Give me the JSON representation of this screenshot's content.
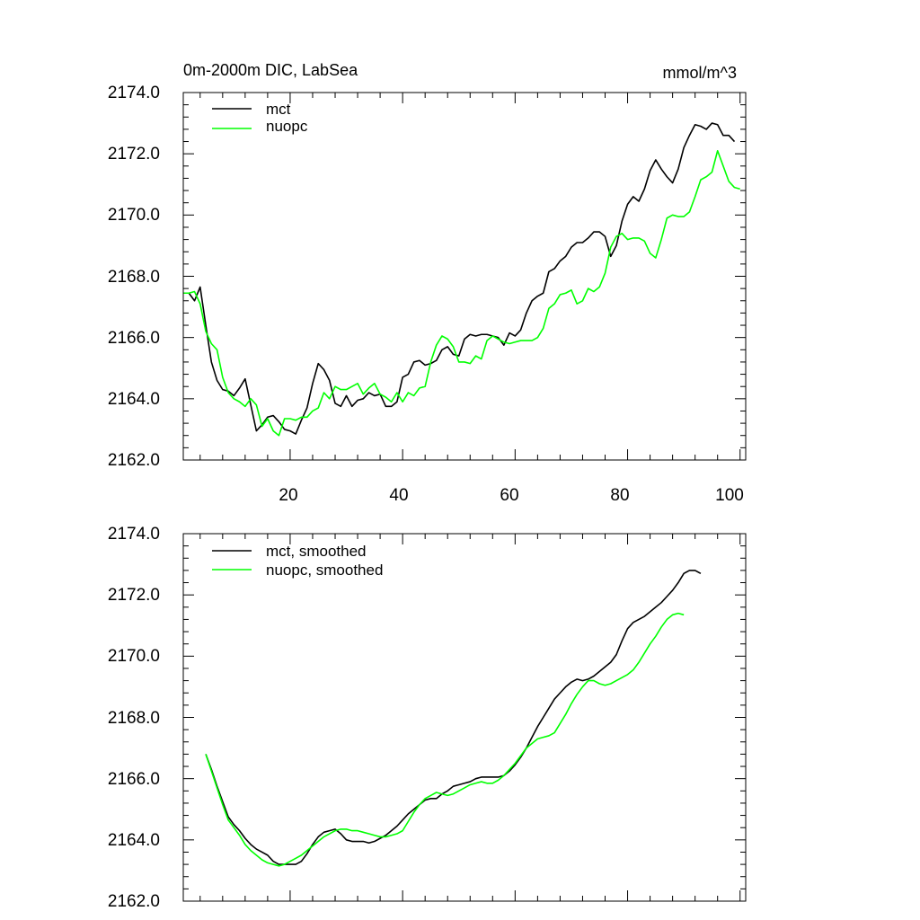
{
  "chart_data": [
    {
      "type": "line",
      "title": "0m-2000m DIC, LabSea",
      "units": "mmol/m^3",
      "xlabel": "",
      "ylabel": "",
      "xlim": [
        1,
        101
      ],
      "ylim": [
        2162.0,
        2174.0
      ],
      "x_ticks": [
        20,
        40,
        60,
        80,
        100
      ],
      "x_tick_labels": [
        "20",
        "40",
        "60",
        "80",
        "100"
      ],
      "y_ticks": [
        2162.0,
        2164.0,
        2166.0,
        2168.0,
        2170.0,
        2172.0,
        2174.0
      ],
      "y_tick_labels": [
        "2162.0",
        "2164.0",
        "2166.0",
        "2168.0",
        "2170.0",
        "2172.0",
        "2174.0"
      ],
      "legend_position": "top-left",
      "x_start": 1,
      "series": [
        {
          "name": "mct",
          "color": "#000000",
          "values": [
            2167.45,
            2167.45,
            2167.2,
            2167.65,
            2166.4,
            2165.2,
            2164.6,
            2164.3,
            2164.25,
            2164.1,
            2164.35,
            2164.65,
            2163.8,
            2162.95,
            2163.15,
            2163.4,
            2163.45,
            2163.25,
            2163.0,
            2162.95,
            2162.85,
            2163.3,
            2163.7,
            2164.5,
            2165.15,
            2164.95,
            2164.6,
            2163.85,
            2163.75,
            2164.1,
            2163.75,
            2163.95,
            2164.0,
            2164.2,
            2164.1,
            2164.15,
            2163.75,
            2163.75,
            2163.9,
            2164.7,
            2164.8,
            2165.2,
            2165.25,
            2165.1,
            2165.15,
            2165.25,
            2165.6,
            2165.7,
            2165.45,
            2165.4,
            2165.95,
            2166.1,
            2166.05,
            2166.1,
            2166.1,
            2166.05,
            2166.0,
            2165.75,
            2166.15,
            2166.05,
            2166.25,
            2166.8,
            2167.2,
            2167.35,
            2167.45,
            2168.15,
            2168.25,
            2168.5,
            2168.65,
            2168.95,
            2169.1,
            2169.1,
            2169.25,
            2169.45,
            2169.45,
            2169.3,
            2168.65,
            2169.0,
            2169.8,
            2170.35,
            2170.6,
            2170.45,
            2170.85,
            2171.45,
            2171.8,
            2171.5,
            2171.25,
            2171.05,
            2171.5,
            2172.2,
            2172.6,
            2172.95,
            2172.9,
            2172.8,
            2173.0,
            2172.95,
            2172.6,
            2172.6,
            2172.4
          ]
        },
        {
          "name": "nuopc",
          "color": "#00ff00",
          "values": [
            2167.45,
            2167.45,
            2167.5,
            2167.1,
            2166.2,
            2165.8,
            2165.6,
            2164.7,
            2164.2,
            2164.0,
            2163.9,
            2163.75,
            2164.0,
            2163.8,
            2163.1,
            2163.35,
            2162.95,
            2162.8,
            2163.35,
            2163.35,
            2163.3,
            2163.4,
            2163.4,
            2163.6,
            2163.7,
            2164.2,
            2164.0,
            2164.4,
            2164.3,
            2164.3,
            2164.4,
            2164.5,
            2164.15,
            2164.35,
            2164.5,
            2164.15,
            2164.05,
            2163.9,
            2164.2,
            2163.9,
            2164.2,
            2164.1,
            2164.35,
            2164.4,
            2165.2,
            2165.75,
            2166.05,
            2165.95,
            2165.7,
            2165.2,
            2165.2,
            2165.15,
            2165.4,
            2165.3,
            2165.9,
            2166.05,
            2165.95,
            2165.85,
            2165.8,
            2165.85,
            2165.9,
            2165.9,
            2165.9,
            2166.0,
            2166.3,
            2166.95,
            2167.1,
            2167.4,
            2167.45,
            2167.55,
            2167.1,
            2167.2,
            2167.6,
            2167.5,
            2167.65,
            2168.1,
            2168.95,
            2169.3,
            2169.4,
            2169.2,
            2169.25,
            2169.25,
            2169.15,
            2168.75,
            2168.6,
            2169.2,
            2169.9,
            2170.0,
            2169.95,
            2169.95,
            2170.1,
            2170.6,
            2171.15,
            2171.25,
            2171.4,
            2172.1,
            2171.6,
            2171.1,
            2170.9,
            2170.85
          ]
        }
      ]
    },
    {
      "type": "line",
      "title": "",
      "xlabel": "",
      "ylabel": "",
      "xlim": [
        1,
        101
      ],
      "ylim": [
        2162.0,
        2174.0
      ],
      "x_ticks": [
        20,
        40,
        60,
        80,
        100
      ],
      "y_ticks": [
        2162.0,
        2164.0,
        2166.0,
        2168.0,
        2170.0,
        2172.0,
        2174.0
      ],
      "y_tick_labels": [
        "2162.0",
        "2164.0",
        "2166.0",
        "2168.0",
        "2170.0",
        "2172.0",
        "2174.0"
      ],
      "legend_position": "top-left",
      "x_start": 5,
      "series": [
        {
          "name": "mct, smoothed",
          "color": "#000000",
          "values": [
            2166.8,
            2166.3,
            2165.75,
            2165.25,
            2164.75,
            2164.5,
            2164.3,
            2164.05,
            2163.85,
            2163.7,
            2163.6,
            2163.5,
            2163.3,
            2163.2,
            2163.2,
            2163.2,
            2163.2,
            2163.3,
            2163.55,
            2163.85,
            2164.1,
            2164.25,
            2164.3,
            2164.35,
            2164.2,
            2164.0,
            2163.95,
            2163.95,
            2163.95,
            2163.9,
            2163.95,
            2164.05,
            2164.15,
            2164.3,
            2164.45,
            2164.65,
            2164.85,
            2165.0,
            2165.15,
            2165.3,
            2165.35,
            2165.35,
            2165.5,
            2165.6,
            2165.75,
            2165.8,
            2165.85,
            2165.9,
            2166.0,
            2166.05,
            2166.05,
            2166.05,
            2166.05,
            2166.1,
            2166.25,
            2166.45,
            2166.7,
            2167.0,
            2167.35,
            2167.7,
            2168.0,
            2168.3,
            2168.6,
            2168.8,
            2169.0,
            2169.15,
            2169.25,
            2169.2,
            2169.25,
            2169.35,
            2169.5,
            2169.65,
            2169.8,
            2170.05,
            2170.5,
            2170.9,
            2171.1,
            2171.2,
            2171.3,
            2171.45,
            2171.6,
            2171.75,
            2171.95,
            2172.15,
            2172.4,
            2172.7,
            2172.8,
            2172.8,
            2172.7
          ]
        },
        {
          "name": "nuopc, smoothed",
          "color": "#00ff00",
          "values": [
            2166.8,
            2166.25,
            2165.7,
            2165.15,
            2164.65,
            2164.4,
            2164.15,
            2163.85,
            2163.65,
            2163.5,
            2163.35,
            2163.25,
            2163.2,
            2163.15,
            2163.2,
            2163.3,
            2163.4,
            2163.5,
            2163.65,
            2163.8,
            2163.95,
            2164.1,
            2164.2,
            2164.3,
            2164.35,
            2164.35,
            2164.3,
            2164.3,
            2164.25,
            2164.2,
            2164.15,
            2164.1,
            2164.1,
            2164.15,
            2164.2,
            2164.3,
            2164.6,
            2164.9,
            2165.15,
            2165.35,
            2165.45,
            2165.55,
            2165.5,
            2165.45,
            2165.5,
            2165.6,
            2165.7,
            2165.8,
            2165.85,
            2165.9,
            2165.85,
            2165.85,
            2165.95,
            2166.1,
            2166.3,
            2166.5,
            2166.75,
            2167.0,
            2167.15,
            2167.3,
            2167.35,
            2167.4,
            2167.5,
            2167.8,
            2168.1,
            2168.45,
            2168.75,
            2169.0,
            2169.2,
            2169.2,
            2169.1,
            2169.05,
            2169.1,
            2169.2,
            2169.3,
            2169.4,
            2169.55,
            2169.8,
            2170.1,
            2170.4,
            2170.65,
            2170.95,
            2171.2,
            2171.35,
            2171.4,
            2171.35
          ]
        }
      ]
    }
  ]
}
